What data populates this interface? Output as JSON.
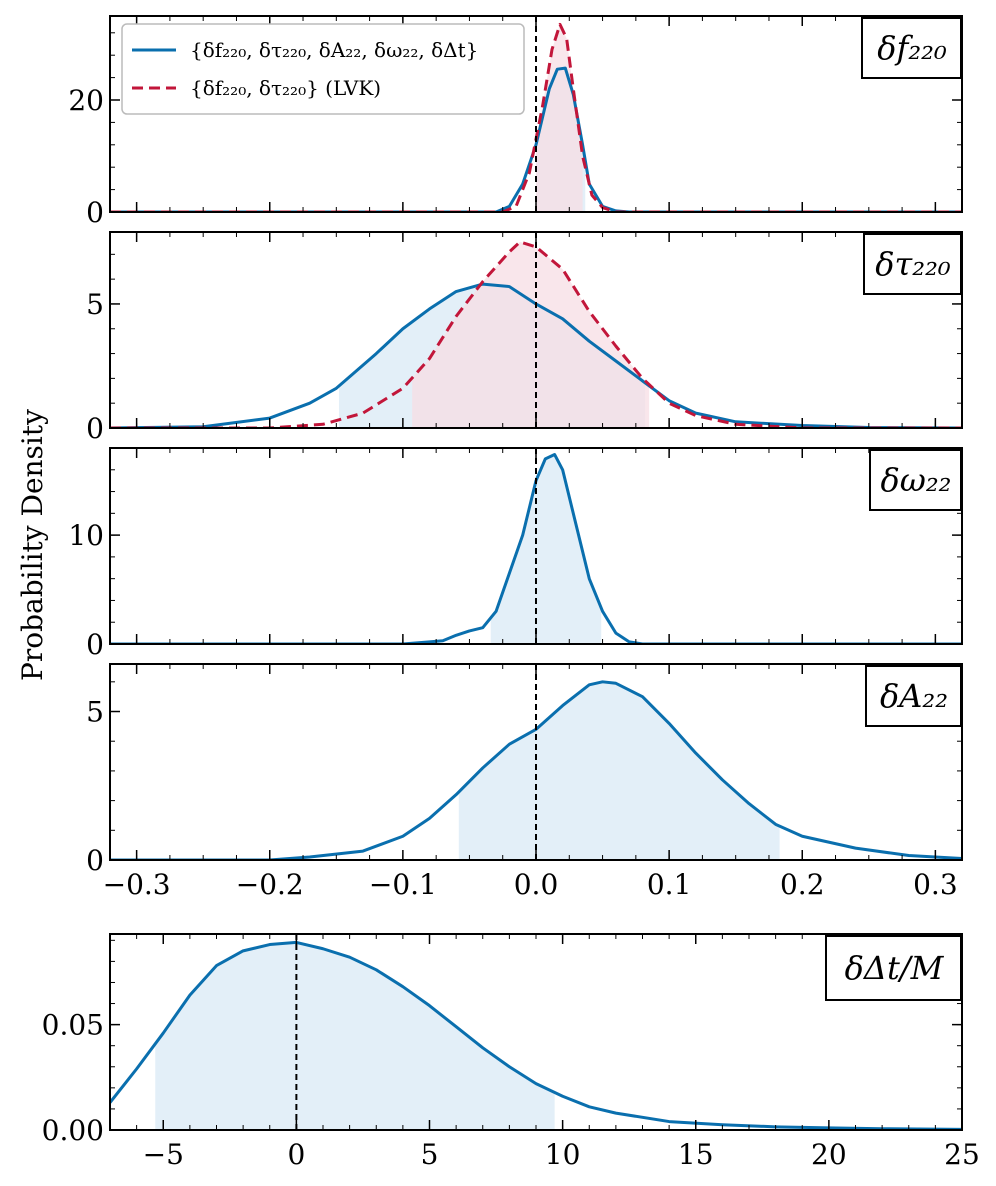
{
  "figure": {
    "ylabel": "Probability Density",
    "colors": {
      "full": "#0a6fae",
      "lvk": "#c2163a",
      "full_fill": "#e3eff8",
      "lvk_fill": "#f7dde4"
    }
  },
  "legend": {
    "entries": [
      {
        "series": "full",
        "label": "{δf₂₂₀, δτ₂₂₀, δA₂₂, δω₂₂, δΔt}"
      },
      {
        "series": "lvk",
        "label": "{δf₂₂₀, δτ₂₂₀} (LVK)"
      }
    ]
  },
  "chart_data": [
    {
      "type": "line",
      "panel": "df220",
      "title": "δf₂₂₀",
      "xlim": [
        -0.32,
        0.32
      ],
      "ylim": [
        0,
        35
      ],
      "yticks": [
        0,
        20
      ],
      "ytick_labels": [
        "0",
        "20"
      ],
      "series": [
        {
          "name": "full",
          "points": [
            [
              -0.32,
              0
            ],
            [
              -0.03,
              0
            ],
            [
              -0.02,
              1
            ],
            [
              -0.01,
              5
            ],
            [
              0.0,
              12
            ],
            [
              0.01,
              22
            ],
            [
              0.016,
              25.5
            ],
            [
              0.022,
              25.7
            ],
            [
              0.028,
              21
            ],
            [
              0.035,
              12
            ],
            [
              0.04,
              5
            ],
            [
              0.05,
              1
            ],
            [
              0.06,
              0.2
            ],
            [
              0.07,
              0
            ],
            [
              0.32,
              0
            ]
          ],
          "ci": [
            0.0,
            0.037
          ]
        },
        {
          "name": "lvk",
          "points": [
            [
              -0.32,
              0
            ],
            [
              -0.025,
              0
            ],
            [
              -0.015,
              1
            ],
            [
              -0.005,
              7
            ],
            [
              0.005,
              19
            ],
            [
              0.012,
              29
            ],
            [
              0.018,
              33.5
            ],
            [
              0.023,
              31
            ],
            [
              0.028,
              22
            ],
            [
              0.035,
              10
            ],
            [
              0.042,
              3
            ],
            [
              0.05,
              0.8
            ],
            [
              0.06,
              0
            ],
            [
              0.32,
              0
            ]
          ],
          "ci": [
            0.0,
            0.035
          ]
        }
      ]
    },
    {
      "type": "line",
      "panel": "dtau220",
      "title": "δτ₂₂₀",
      "xlim": [
        -0.32,
        0.32
      ],
      "ylim": [
        0,
        7.9
      ],
      "yticks": [
        0,
        5
      ],
      "ytick_labels": [
        "0",
        "5"
      ],
      "series": [
        {
          "name": "full",
          "points": [
            [
              -0.32,
              0
            ],
            [
              -0.25,
              0.05
            ],
            [
              -0.2,
              0.4
            ],
            [
              -0.17,
              1
            ],
            [
              -0.15,
              1.6
            ],
            [
              -0.12,
              3
            ],
            [
              -0.1,
              4
            ],
            [
              -0.08,
              4.8
            ],
            [
              -0.06,
              5.5
            ],
            [
              -0.04,
              5.8
            ],
            [
              -0.02,
              5.7
            ],
            [
              0.0,
              5
            ],
            [
              0.02,
              4.4
            ],
            [
              0.04,
              3.5
            ],
            [
              0.06,
              2.7
            ],
            [
              0.08,
              1.9
            ],
            [
              0.1,
              1.1
            ],
            [
              0.12,
              0.6
            ],
            [
              0.15,
              0.25
            ],
            [
              0.2,
              0.1
            ],
            [
              0.25,
              0.02
            ],
            [
              0.32,
              0
            ]
          ],
          "ci": [
            -0.148,
            0.082
          ]
        },
        {
          "name": "lvk",
          "points": [
            [
              -0.32,
              0
            ],
            [
              -0.2,
              0
            ],
            [
              -0.16,
              0.15
            ],
            [
              -0.13,
              0.6
            ],
            [
              -0.1,
              1.6
            ],
            [
              -0.08,
              2.8
            ],
            [
              -0.06,
              4.5
            ],
            [
              -0.04,
              5.9
            ],
            [
              -0.02,
              7.1
            ],
            [
              -0.012,
              7.5
            ],
            [
              0.0,
              7.3
            ],
            [
              0.02,
              6.4
            ],
            [
              0.04,
              4.7
            ],
            [
              0.06,
              3.3
            ],
            [
              0.08,
              2.0
            ],
            [
              0.1,
              1.0
            ],
            [
              0.12,
              0.5
            ],
            [
              0.15,
              0.15
            ],
            [
              0.2,
              0
            ],
            [
              0.32,
              0
            ]
          ],
          "ci": [
            -0.093,
            0.085
          ]
        }
      ]
    },
    {
      "type": "line",
      "panel": "domega22",
      "title": "δω₂₂",
      "xlim": [
        -0.32,
        0.32
      ],
      "ylim": [
        0,
        18
      ],
      "yticks": [
        0,
        10
      ],
      "ytick_labels": [
        "0",
        "10"
      ],
      "series": [
        {
          "name": "full",
          "points": [
            [
              -0.32,
              0
            ],
            [
              -0.1,
              0
            ],
            [
              -0.08,
              0.2
            ],
            [
              -0.07,
              0.3
            ],
            [
              -0.06,
              0.8
            ],
            [
              -0.05,
              1.2
            ],
            [
              -0.04,
              1.5
            ],
            [
              -0.03,
              3
            ],
            [
              -0.02,
              6.5
            ],
            [
              -0.01,
              10
            ],
            [
              0.0,
              15
            ],
            [
              0.007,
              17
            ],
            [
              0.014,
              17.4
            ],
            [
              0.02,
              16
            ],
            [
              0.03,
              11
            ],
            [
              0.04,
              6
            ],
            [
              0.05,
              3
            ],
            [
              0.06,
              1
            ],
            [
              0.07,
              0.2
            ],
            [
              0.08,
              0
            ],
            [
              0.32,
              0
            ]
          ],
          "ci": [
            -0.034,
            0.049
          ]
        }
      ]
    },
    {
      "type": "line",
      "panel": "dA22",
      "title": "δA₂₂",
      "xlim": [
        -0.32,
        0.32
      ],
      "ylim": [
        0,
        6.6
      ],
      "yticks": [
        0,
        5
      ],
      "ytick_labels": [
        "0",
        "5"
      ],
      "xticks": [
        -0.3,
        -0.2,
        -0.1,
        0.0,
        0.1,
        0.2,
        0.3
      ],
      "xtick_labels": [
        "−0.3",
        "−0.2",
        "−0.1",
        "0.0",
        "0.1",
        "0.2",
        "0.3"
      ],
      "series": [
        {
          "name": "full",
          "points": [
            [
              -0.32,
              0
            ],
            [
              -0.2,
              0
            ],
            [
              -0.17,
              0.1
            ],
            [
              -0.13,
              0.3
            ],
            [
              -0.1,
              0.8
            ],
            [
              -0.08,
              1.4
            ],
            [
              -0.06,
              2.2
            ],
            [
              -0.04,
              3.1
            ],
            [
              -0.02,
              3.9
            ],
            [
              0.0,
              4.4
            ],
            [
              0.02,
              5.2
            ],
            [
              0.04,
              5.9
            ],
            [
              0.05,
              6.0
            ],
            [
              0.06,
              5.95
            ],
            [
              0.08,
              5.5
            ],
            [
              0.1,
              4.6
            ],
            [
              0.12,
              3.6
            ],
            [
              0.14,
              2.7
            ],
            [
              0.16,
              1.9
            ],
            [
              0.18,
              1.2
            ],
            [
              0.2,
              0.8
            ],
            [
              0.24,
              0.4
            ],
            [
              0.28,
              0.15
            ],
            [
              0.32,
              0.05
            ]
          ],
          "ci": [
            -0.058,
            0.183
          ]
        }
      ]
    },
    {
      "type": "line",
      "panel": "dDeltat",
      "title": "δΔt/M",
      "xlim": [
        -7,
        25
      ],
      "ylim": [
        0,
        0.093
      ],
      "yticks": [
        0,
        0.05
      ],
      "ytick_labels": [
        "0.00",
        "0.05"
      ],
      "xticks": [
        -5,
        0,
        5,
        10,
        15,
        20,
        25
      ],
      "xtick_labels": [
        "−5",
        "0",
        "5",
        "10",
        "15",
        "20",
        "25"
      ],
      "series": [
        {
          "name": "full",
          "points": [
            [
              -7,
              0.013
            ],
            [
              -6,
              0.029
            ],
            [
              -5,
              0.046
            ],
            [
              -4,
              0.064
            ],
            [
              -3,
              0.078
            ],
            [
              -2,
              0.085
            ],
            [
              -1,
              0.088
            ],
            [
              0,
              0.089
            ],
            [
              1,
              0.086
            ],
            [
              2,
              0.082
            ],
            [
              3,
              0.076
            ],
            [
              4,
              0.068
            ],
            [
              5,
              0.059
            ],
            [
              6,
              0.049
            ],
            [
              7,
              0.039
            ],
            [
              8,
              0.03
            ],
            [
              9,
              0.022
            ],
            [
              10,
              0.016
            ],
            [
              11,
              0.011
            ],
            [
              12,
              0.008
            ],
            [
              14,
              0.004
            ],
            [
              16,
              0.0025
            ],
            [
              18,
              0.0015
            ],
            [
              20,
              0.001
            ],
            [
              22,
              0.0006
            ],
            [
              25,
              0.0003
            ]
          ],
          "ci": [
            -5.3,
            9.7
          ]
        }
      ]
    }
  ]
}
